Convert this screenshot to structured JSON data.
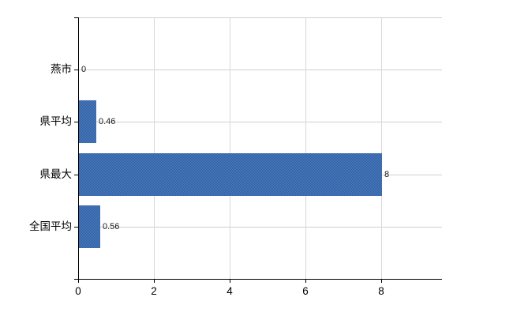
{
  "chart_data": {
    "type": "bar",
    "orientation": "horizontal",
    "title": "",
    "xlabel": "",
    "ylabel": "",
    "categories": [
      "燕市",
      "県平均",
      "県最大",
      "全国平均"
    ],
    "values": [
      0,
      0.46,
      8,
      0.56
    ],
    "value_labels": [
      "0",
      "0.46",
      "8",
      "0.56"
    ],
    "x_ticks": [
      0,
      2,
      4,
      6,
      8
    ],
    "x_tick_labels": [
      "0",
      "2",
      "4",
      "6",
      "8"
    ],
    "xlim": [
      0,
      9.6
    ],
    "grid": true,
    "legend": false,
    "colors": {
      "bar_solid": "#3e6db1",
      "bar_dither_dark": "#305f9e",
      "bar_dither_light": "#4b7ac2",
      "axis": "#000000",
      "grid_horizontal": "#ccd4cc",
      "grid_vertical": "#d8d8d8",
      "category_text": "#000000",
      "value_text": "#1a1a1a",
      "tick_text": "#000000",
      "background": "#ffffff"
    }
  }
}
